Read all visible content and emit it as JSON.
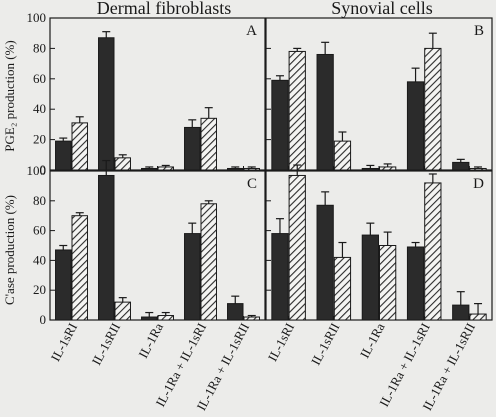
{
  "titles": {
    "left": "Dermal fibroblasts",
    "right": "Synovial cells"
  },
  "ylabels": {
    "top": "PGE₂ production (%)",
    "bottom": "C'ase production (%)"
  },
  "categories": [
    "IL-1sRI",
    "IL-1sRII",
    "IL-1Ra",
    "IL-1Ra + IL-1sRI",
    "IL-1Ra + IL-1sRII"
  ],
  "colors": {
    "solid": "#2b2b2b",
    "hatch": "#2b2b2b",
    "background": "#ececea"
  },
  "chart_data": [
    {
      "type": "bar",
      "panel": "A",
      "categories": [
        "IL-1sRI",
        "IL-1sRII",
        "IL-1Ra",
        "IL-1Ra + IL-1sRI",
        "IL-1Ra + IL-1sRII"
      ],
      "ylim": [
        0,
        100
      ],
      "yticks": [
        0,
        20,
        40,
        60,
        80,
        100
      ],
      "ylabel": "PGE₂ production (%)",
      "series": [
        {
          "pattern": "solid",
          "values": [
            19,
            87,
            1,
            28,
            1
          ],
          "errors": [
            2,
            4,
            1,
            5,
            1
          ]
        },
        {
          "pattern": "hatched",
          "values": [
            31,
            8,
            2,
            34,
            1
          ],
          "errors": [
            4,
            2,
            1,
            7,
            1
          ]
        }
      ]
    },
    {
      "type": "bar",
      "panel": "B",
      "categories": [
        "IL-1sRI",
        "IL-1sRII",
        "IL-1Ra",
        "IL-1Ra + IL-1sRI",
        "IL-1Ra + IL-1sRII"
      ],
      "ylim": [
        0,
        100
      ],
      "series": [
        {
          "pattern": "solid",
          "values": [
            59,
            76,
            1,
            58,
            5
          ],
          "errors": [
            3,
            8,
            2,
            9,
            2
          ]
        },
        {
          "pattern": "hatched",
          "values": [
            78,
            19,
            2,
            80,
            1
          ],
          "errors": [
            2,
            6,
            2,
            10,
            1
          ]
        }
      ]
    },
    {
      "type": "bar",
      "panel": "C",
      "categories": [
        "IL-1sRI",
        "IL-1sRII",
        "IL-1Ra",
        "IL-1Ra + IL-1sRI",
        "IL-1Ra + IL-1sRII"
      ],
      "ylim": [
        0,
        100
      ],
      "yticks": [
        0,
        20,
        40,
        60,
        80,
        100
      ],
      "ylabel": "C'ase production (%)",
      "series": [
        {
          "pattern": "solid",
          "values": [
            47,
            97,
            2,
            58,
            11
          ],
          "errors": [
            3,
            10,
            3,
            7,
            5
          ]
        },
        {
          "pattern": "hatched",
          "values": [
            70,
            12,
            3,
            78,
            2
          ],
          "errors": [
            2,
            3,
            2,
            2,
            1
          ]
        }
      ]
    },
    {
      "type": "bar",
      "panel": "D",
      "categories": [
        "IL-1sRI",
        "IL-1sRII",
        "IL-1Ra",
        "IL-1Ra + IL-1sRI",
        "IL-1Ra + IL-1sRII"
      ],
      "ylim": [
        0,
        100
      ],
      "series": [
        {
          "pattern": "solid",
          "values": [
            58,
            77,
            57,
            49,
            10
          ],
          "errors": [
            10,
            9,
            8,
            3,
            9
          ]
        },
        {
          "pattern": "hatched",
          "values": [
            97,
            42,
            50,
            92,
            4
          ],
          "errors": [
            7,
            10,
            9,
            6,
            7
          ]
        }
      ]
    }
  ]
}
